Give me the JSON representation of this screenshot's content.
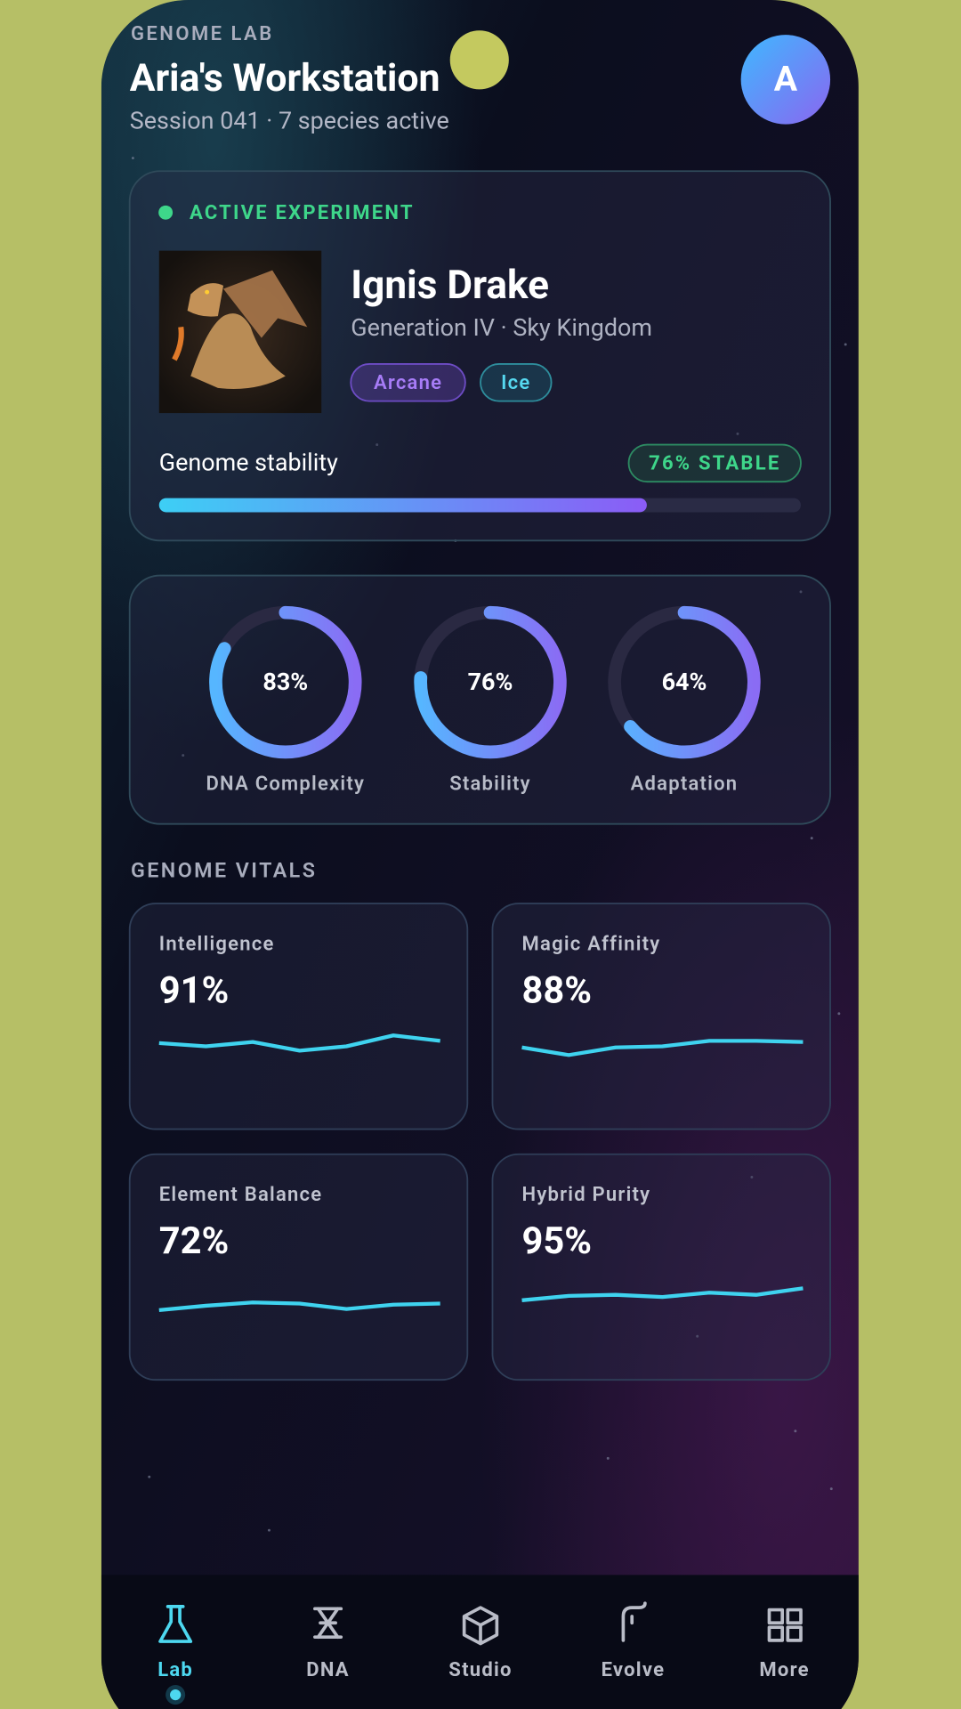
{
  "header": {
    "eyebrow": "GENOME LAB",
    "title": "Aria's Workstation",
    "subtitle": "Session 041 · 7 species active",
    "avatar": "A"
  },
  "experiment": {
    "status": "ACTIVE EXPERIMENT",
    "name": "Ignis Drake",
    "details": "Generation IV · Sky Kingdom",
    "tags": [
      "Arcane",
      "Ice"
    ],
    "stability_label": "Genome stability",
    "stability": {
      "value": 76,
      "label": "76% STABLE"
    }
  },
  "rings": [
    {
      "value": 83,
      "value_label": "83%",
      "label": "DNA Complexity"
    },
    {
      "value": 76,
      "value_label": "76%",
      "label": "Stability"
    },
    {
      "value": 64,
      "value_label": "64%",
      "label": "Adaptation"
    }
  ],
  "vitals": {
    "title": "GENOME VITALS",
    "cards": [
      {
        "label": "Intelligence",
        "value": "91%",
        "trend": [
          18,
          15,
          19,
          11,
          15,
          25,
          20
        ]
      },
      {
        "label": "Magic Affinity",
        "value": "88%",
        "trend": [
          14,
          7,
          14,
          15,
          20,
          20,
          19
        ]
      },
      {
        "label": "Element Balance",
        "value": "72%",
        "trend": [
          3,
          7,
          10,
          9,
          4,
          8,
          9
        ]
      },
      {
        "label": "Hybrid Purity",
        "value": "95%",
        "trend": [
          12,
          16,
          17,
          15,
          19,
          17,
          23
        ]
      }
    ]
  },
  "nav": [
    {
      "label": "Lab",
      "active": true
    },
    {
      "label": "DNA",
      "active": false
    },
    {
      "label": "Studio",
      "active": false
    },
    {
      "label": "Evolve",
      "active": false
    },
    {
      "label": "More",
      "active": false
    }
  ]
}
